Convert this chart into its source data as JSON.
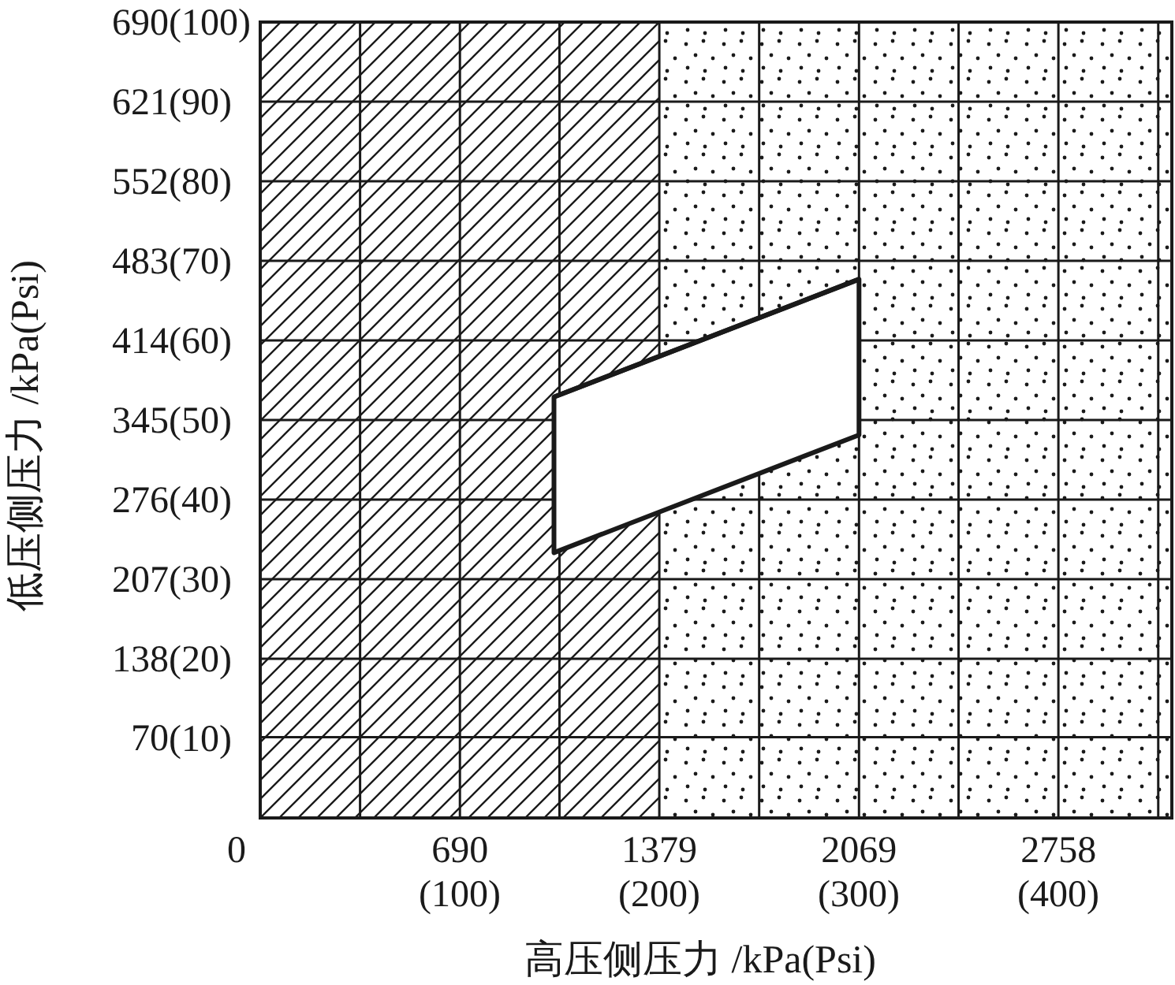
{
  "chart_data": {
    "type": "line",
    "xlabel": "高压侧压力 /kPa(Psi)",
    "ylabel": "低压侧压力 /kPa(Psi)",
    "xlim": [
      0,
      3150
    ],
    "ylim": [
      0,
      690
    ],
    "xticks": [
      0,
      {
        "value": 345,
        "label": null
      },
      690,
      {
        "value": 1034,
        "label": null
      },
      1379,
      {
        "value": 1724,
        "label": null
      },
      2069,
      {
        "value": 2413,
        "label": null
      },
      2758,
      {
        "value": 3103,
        "label": null
      }
    ],
    "x2lim": [
      0,
      456.9
    ],
    "x2ticks": [
      {
        "value": 100,
        "label": "(100)"
      },
      {
        "value": 200,
        "label": "(200)"
      },
      {
        "value": 300,
        "label": "(300)"
      },
      {
        "value": 400,
        "label": "(400)"
      }
    ],
    "yticks": [
      70,
      138,
      207,
      276,
      345,
      414,
      483,
      552,
      621,
      690
    ],
    "y2lim": [
      0,
      100
    ],
    "y2ticks": [
      {
        "value": 10,
        "label": "(10)"
      },
      {
        "value": 20,
        "label": "(20)"
      },
      {
        "value": 30,
        "label": "(30)"
      },
      {
        "value": 40,
        "label": "(40)"
      },
      {
        "value": 50,
        "label": "(50)"
      },
      {
        "value": 60,
        "label": "(60)"
      },
      {
        "value": 70,
        "label": "(70)"
      },
      {
        "value": 80,
        "label": "(80)"
      },
      {
        "value": 90,
        "label": "(90)"
      },
      {
        "value": 100,
        "label": "(100)"
      }
    ],
    "grid": true,
    "bands": [
      {
        "axis": "x",
        "from": 0,
        "to": 1379,
        "color": "#1a1a1a"
      },
      {
        "axis": "x",
        "from": 1379,
        "to": 3150,
        "color": "#1a1a1a"
      }
    ],
    "series": [
      {
        "color": "#1a1a1a",
        "x": [
          1015,
          2069
        ],
        "values": [
          365,
          467
        ],
        "lower": [
          230,
          332
        ],
        "upper": [
          365,
          467
        ]
      }
    ]
  }
}
